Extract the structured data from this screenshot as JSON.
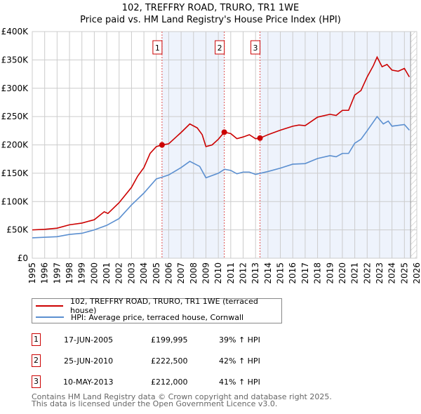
{
  "title": "102, TREFFRY ROAD, TRURO, TR1 1WE",
  "subtitle": "Price paid vs. HM Land Registry's House Price Index (HPI)",
  "chart_data": {
    "type": "line",
    "title": "102, TREFFRY ROAD, TRURO, TR1 1WE - Price paid vs. HM Land Registry's House Price Index (HPI)",
    "xlim": [
      1995,
      2026
    ],
    "ylim": [
      0,
      400000
    ],
    "x_ticks": [
      "1995",
      "1996",
      "1997",
      "1998",
      "1999",
      "2000",
      "2001",
      "2002",
      "2003",
      "2004",
      "2005",
      "2006",
      "2007",
      "2008",
      "2009",
      "2010",
      "2011",
      "2012",
      "2013",
      "2014",
      "2015",
      "2016",
      "2017",
      "2018",
      "2019",
      "2020",
      "2021",
      "2022",
      "2023",
      "2024",
      "2025",
      "2026"
    ],
    "y_ticks": [
      {
        "v": 0,
        "label": "£0"
      },
      {
        "v": 50000,
        "label": "£50K"
      },
      {
        "v": 100000,
        "label": "£100K"
      },
      {
        "v": 150000,
        "label": "£150K"
      },
      {
        "v": 200000,
        "label": "£200K"
      },
      {
        "v": 250000,
        "label": "£250K"
      },
      {
        "v": 300000,
        "label": "£300K"
      },
      {
        "v": 350000,
        "label": "£350K"
      },
      {
        "v": 400000,
        "label": "£400K"
      }
    ],
    "grid": true,
    "series": [
      {
        "name": "102, TREFFRY ROAD, TRURO, TR1 1WE (terraced house)",
        "color": "#cc0000",
        "points": [
          [
            1995,
            50000
          ],
          [
            1996,
            51000
          ],
          [
            1997,
            53000
          ],
          [
            1998,
            59000
          ],
          [
            1999,
            62000
          ],
          [
            2000,
            68000
          ],
          [
            2000.8,
            82000
          ],
          [
            2001.1,
            79000
          ],
          [
            2002,
            98000
          ],
          [
            2003,
            125000
          ],
          [
            2003.5,
            145000
          ],
          [
            2004,
            160000
          ],
          [
            2004.5,
            185000
          ],
          [
            2005,
            197000
          ],
          [
            2005.46,
            199995
          ],
          [
            2006,
            202000
          ],
          [
            2006.5,
            212000
          ],
          [
            2007,
            222000
          ],
          [
            2007.7,
            237000
          ],
          [
            2008.3,
            230000
          ],
          [
            2008.7,
            218000
          ],
          [
            2009,
            197000
          ],
          [
            2009.5,
            200000
          ],
          [
            2010,
            210000
          ],
          [
            2010.48,
            222500
          ],
          [
            2011,
            220000
          ],
          [
            2011.5,
            211000
          ],
          [
            2012,
            214000
          ],
          [
            2012.5,
            218000
          ],
          [
            2013,
            211000
          ],
          [
            2013.36,
            212000
          ],
          [
            2014,
            218000
          ],
          [
            2015,
            226000
          ],
          [
            2016,
            233000
          ],
          [
            2016.5,
            235000
          ],
          [
            2017,
            234000
          ],
          [
            2018,
            249000
          ],
          [
            2019,
            254000
          ],
          [
            2019.5,
            252000
          ],
          [
            2020,
            261000
          ],
          [
            2020.5,
            261000
          ],
          [
            2021,
            288000
          ],
          [
            2021.5,
            296000
          ],
          [
            2022,
            320000
          ],
          [
            2022.5,
            340000
          ],
          [
            2022.8,
            355000
          ],
          [
            2023.2,
            338000
          ],
          [
            2023.6,
            342000
          ],
          [
            2024,
            332000
          ],
          [
            2024.5,
            330000
          ],
          [
            2025,
            335000
          ],
          [
            2025.4,
            320000
          ]
        ]
      },
      {
        "name": "HPI: Average price, terraced house, Cornwall",
        "color": "#5b8fd0",
        "points": [
          [
            1995,
            36000
          ],
          [
            1997,
            38000
          ],
          [
            1998,
            42000
          ],
          [
            1999,
            44000
          ],
          [
            2000,
            50000
          ],
          [
            2001,
            58000
          ],
          [
            2002,
            70000
          ],
          [
            2003,
            94000
          ],
          [
            2004,
            115000
          ],
          [
            2005,
            140000
          ],
          [
            2005.46,
            143000
          ],
          [
            2006,
            147000
          ],
          [
            2007,
            160000
          ],
          [
            2007.7,
            171000
          ],
          [
            2008.5,
            162000
          ],
          [
            2009,
            142000
          ],
          [
            2010,
            150000
          ],
          [
            2010.5,
            157000
          ],
          [
            2011,
            155000
          ],
          [
            2011.5,
            149000
          ],
          [
            2012,
            152000
          ],
          [
            2012.5,
            152000
          ],
          [
            2013,
            148000
          ],
          [
            2014,
            153000
          ],
          [
            2015,
            159000
          ],
          [
            2016,
            166000
          ],
          [
            2017,
            167000
          ],
          [
            2018,
            176000
          ],
          [
            2019,
            181000
          ],
          [
            2019.5,
            179000
          ],
          [
            2020,
            185000
          ],
          [
            2020.5,
            185000
          ],
          [
            2021,
            203000
          ],
          [
            2021.5,
            210000
          ],
          [
            2022,
            225000
          ],
          [
            2022.8,
            250000
          ],
          [
            2023.3,
            237000
          ],
          [
            2023.7,
            242000
          ],
          [
            2024,
            233000
          ],
          [
            2025,
            236000
          ],
          [
            2025.4,
            226000
          ]
        ]
      }
    ],
    "annotations": [
      {
        "label": "1",
        "x": 2005.46,
        "y": 199995
      },
      {
        "label": "2",
        "x": 2010.48,
        "y": 222500
      },
      {
        "label": "3",
        "x": 2013.36,
        "y": 212000
      }
    ],
    "shaded_ranges": [
      [
        2005.46,
        2010.48
      ],
      [
        2013.36,
        2025.5
      ]
    ],
    "hatched_from": 2025.5,
    "legend_placement": "below"
  },
  "legend": [
    {
      "label": "102, TREFFRY ROAD, TRURO, TR1 1WE (terraced house)",
      "color": "#cc0000"
    },
    {
      "label": "HPI: Average price, terraced house, Cornwall",
      "color": "#5b8fd0"
    }
  ],
  "transactions": [
    {
      "num": "1",
      "date": "17-JUN-2005",
      "price": "£199,995",
      "hpi": "39% ↑ HPI"
    },
    {
      "num": "2",
      "date": "25-JUN-2010",
      "price": "£222,500",
      "hpi": "42% ↑ HPI"
    },
    {
      "num": "3",
      "date": "10-MAY-2013",
      "price": "£212,000",
      "hpi": "41% ↑ HPI"
    }
  ],
  "footer": [
    "Contains HM Land Registry data © Crown copyright and database right 2025.",
    "This data is licensed under the Open Government Licence v3.0."
  ]
}
